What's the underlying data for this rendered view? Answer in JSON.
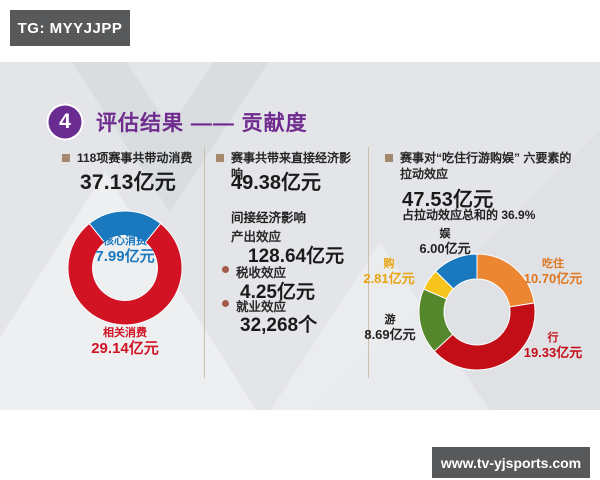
{
  "badges": {
    "tg": "TG: MYYJJPP",
    "site": "www.tv-yjsports.com"
  },
  "title": {
    "number": "4",
    "text": "评估结果 —— 贡献度"
  },
  "columns": {
    "col1": {
      "header": "118项赛事共带动消费",
      "value": "37.13亿元"
    },
    "col2": {
      "header": "赛事共带来直接经济影响",
      "value": "49.38亿元",
      "indirect_title": "间接经济影响",
      "items": [
        {
          "label": "产出效应",
          "value": "128.64亿元"
        },
        {
          "label": "税收效应",
          "value": "4.25亿元"
        },
        {
          "label": "就业效应",
          "value": "32,268个"
        }
      ]
    },
    "col3": {
      "header": "赛事对“吃住行游购娱” 六要素的拉动效应",
      "value": "47.53亿元",
      "note": "占拉动效应总和的 36.9%"
    }
  },
  "chart_data": [
    {
      "type": "donut",
      "description": "消费带动结构 37.13亿元",
      "total": 37.13,
      "unit": "亿元",
      "start_angle_deg": -38.74,
      "segments": [
        {
          "label": "核心消费",
          "value": 7.99,
          "value_label": "7.99亿元",
          "color": "#1a78bf",
          "text_color": "#1a78bf"
        },
        {
          "label": "相关消费",
          "value": 29.14,
          "value_label": "29.14亿元",
          "color": "#d11324",
          "text_color": "#d11324"
        }
      ]
    },
    {
      "type": "donut",
      "description": "吃住行游购娱六要素拉动效应 47.53亿元",
      "total": 47.53,
      "unit": "亿元",
      "start_angle_deg": 0,
      "segments": [
        {
          "label": "吃住",
          "value": 10.7,
          "value_label": "10.70亿元",
          "color": "#ec8633",
          "text_color": "#e0761f"
        },
        {
          "label": "行",
          "value": 19.33,
          "value_label": "19.33亿元",
          "color": "#c30d17",
          "text_color": "#c30d17"
        },
        {
          "label": "游",
          "value": 8.69,
          "value_label": "8.69亿元",
          "color": "#55882c",
          "text_color": "#1f1f1f"
        },
        {
          "label": "购",
          "value": 2.81,
          "value_label": "2.81亿元",
          "color": "#f7c31d",
          "text_color": "#e9a40e"
        },
        {
          "label": "娱",
          "value": 6.0,
          "value_label": "6.00亿元",
          "color": "#1a78bf",
          "text_color": "#1f1f1f"
        }
      ]
    }
  ],
  "colors": {
    "accent_purple": "#6f2b8e",
    "badge_bg": "#58595b",
    "slide_bg": "#e4e5e8",
    "bullet_square": "#a6886e",
    "bullet_round": "#a35b49"
  }
}
